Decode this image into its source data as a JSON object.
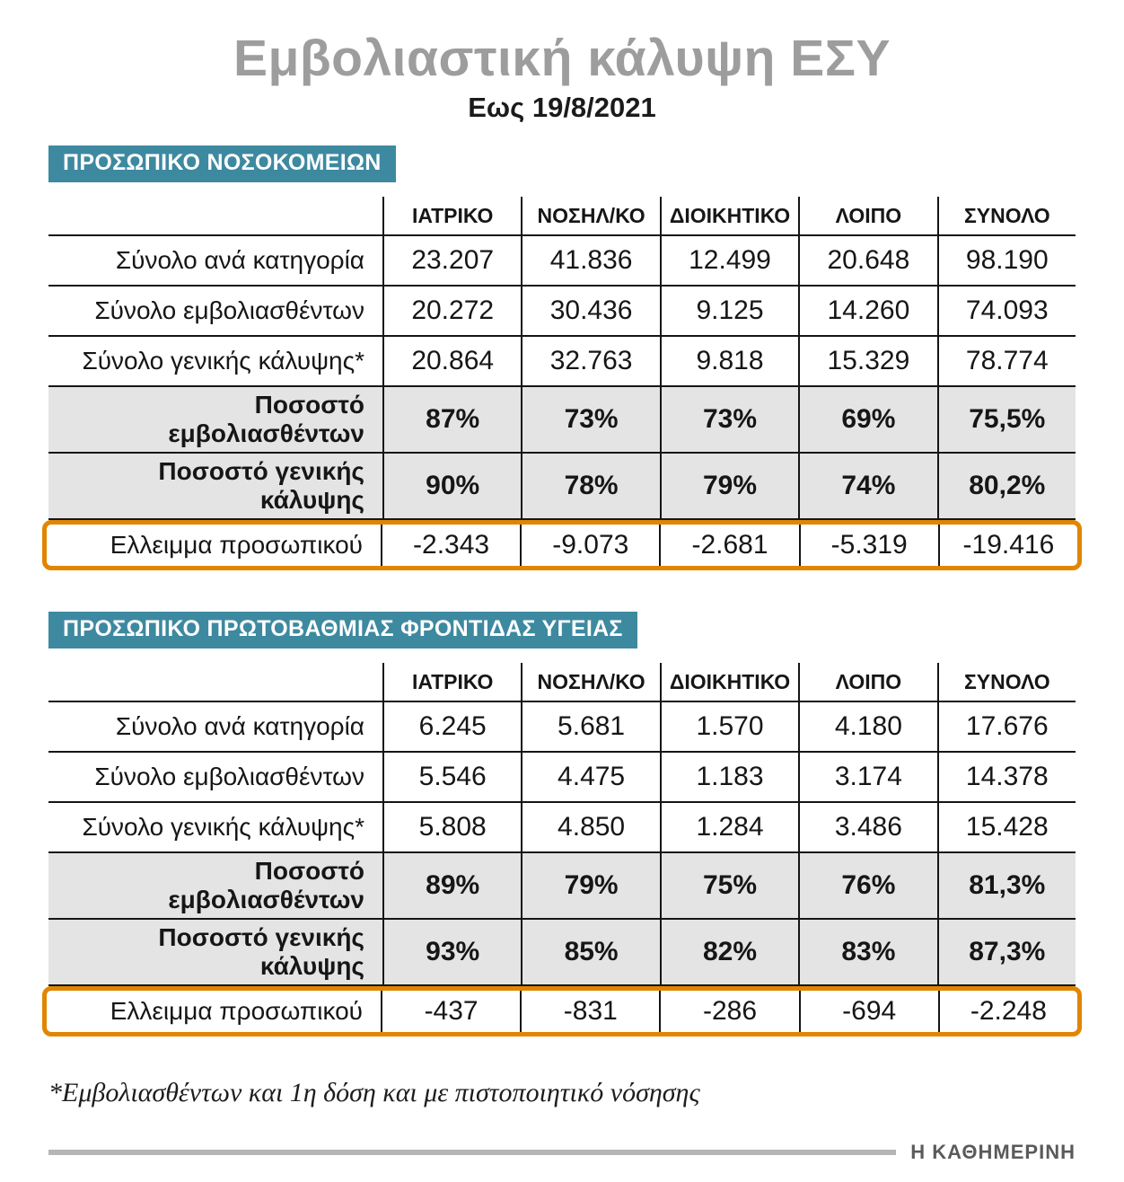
{
  "page": {
    "title": "Εμβολιαστική κάλυψη ΕΣΥ",
    "subtitle": "Εως 19/8/2021",
    "footnote": "*Εμβολιασθέντων και 1η δόση και με πιστοποιητικό νόσησης",
    "brand": "Η ΚΑΘΗΜΕΡΙΝΗ"
  },
  "chart_data": [
    {
      "type": "table",
      "title": "ΠΡΟΣΩΠΙΚΟ ΝΟΣΟΚΟΜΕΙΩΝ",
      "columns": [
        "ΙΑΤΡΙΚΟ",
        "ΝΟΣΗΛ/ΚΟ",
        "ΔΙΟΙΚΗΤΙΚΟ",
        "ΛΟΙΠΟ",
        "ΣΥΝΟΛΟ"
      ],
      "rows": [
        {
          "label": "Σύνολο ανά κατηγορία",
          "values": [
            "23.207",
            "41.836",
            "12.499",
            "20.648",
            "98.190"
          ],
          "style": "plain"
        },
        {
          "label": "Σύνολο εμβολιασθέντων",
          "values": [
            "20.272",
            "30.436",
            "9.125",
            "14.260",
            "74.093"
          ],
          "style": "plain"
        },
        {
          "label": "Σύνολο γενικής κάλυψης*",
          "values": [
            "20.864",
            "32.763",
            "9.818",
            "15.329",
            "78.774"
          ],
          "style": "plain"
        },
        {
          "label": "Ποσοστό εμβολιασθέντων",
          "values": [
            "87%",
            "73%",
            "73%",
            "69%",
            "75,5%"
          ],
          "style": "percent"
        },
        {
          "label": "Ποσοστό γενικής κάλυψης",
          "values": [
            "90%",
            "78%",
            "79%",
            "74%",
            "80,2%"
          ],
          "style": "percent"
        },
        {
          "label": "Ελλειμμα προσωπικού",
          "values": [
            "-2.343",
            "-9.073",
            "-2.681",
            "-5.319",
            "-19.416"
          ],
          "style": "deficit"
        }
      ]
    },
    {
      "type": "table",
      "title": "ΠΡΟΣΩΠΙΚΟ ΠΡΩΤΟΒΑΘΜΙΑΣ ΦΡΟΝΤΙΔΑΣ ΥΓΕΙΑΣ",
      "columns": [
        "ΙΑΤΡΙΚΟ",
        "ΝΟΣΗΛ/ΚΟ",
        "ΔΙΟΙΚΗΤΙΚΟ",
        "ΛΟΙΠΟ",
        "ΣΥΝΟΛΟ"
      ],
      "rows": [
        {
          "label": "Σύνολο ανά κατηγορία",
          "values": [
            "6.245",
            "5.681",
            "1.570",
            "4.180",
            "17.676"
          ],
          "style": "plain"
        },
        {
          "label": "Σύνολο εμβολιασθέντων",
          "values": [
            "5.546",
            "4.475",
            "1.183",
            "3.174",
            "14.378"
          ],
          "style": "plain"
        },
        {
          "label": "Σύνολο γενικής κάλυψης*",
          "values": [
            "5.808",
            "4.850",
            "1.284",
            "3.486",
            "15.428"
          ],
          "style": "plain"
        },
        {
          "label": "Ποσοστό εμβολιασθέντων",
          "values": [
            "89%",
            "79%",
            "75%",
            "76%",
            "81,3%"
          ],
          "style": "percent"
        },
        {
          "label": "Ποσοστό γενικής κάλυψης",
          "values": [
            "93%",
            "85%",
            "82%",
            "83%",
            "87,3%"
          ],
          "style": "percent"
        },
        {
          "label": "Ελλειμμα προσωπικού",
          "values": [
            "-437",
            "-831",
            "-286",
            "-694",
            "-2.248"
          ],
          "style": "deficit"
        }
      ]
    }
  ],
  "colors": {
    "teal": "#3d89a0",
    "orange": "#e08600",
    "gray_row": "#e4e4e4",
    "title_gray": "#9d9d9d"
  }
}
